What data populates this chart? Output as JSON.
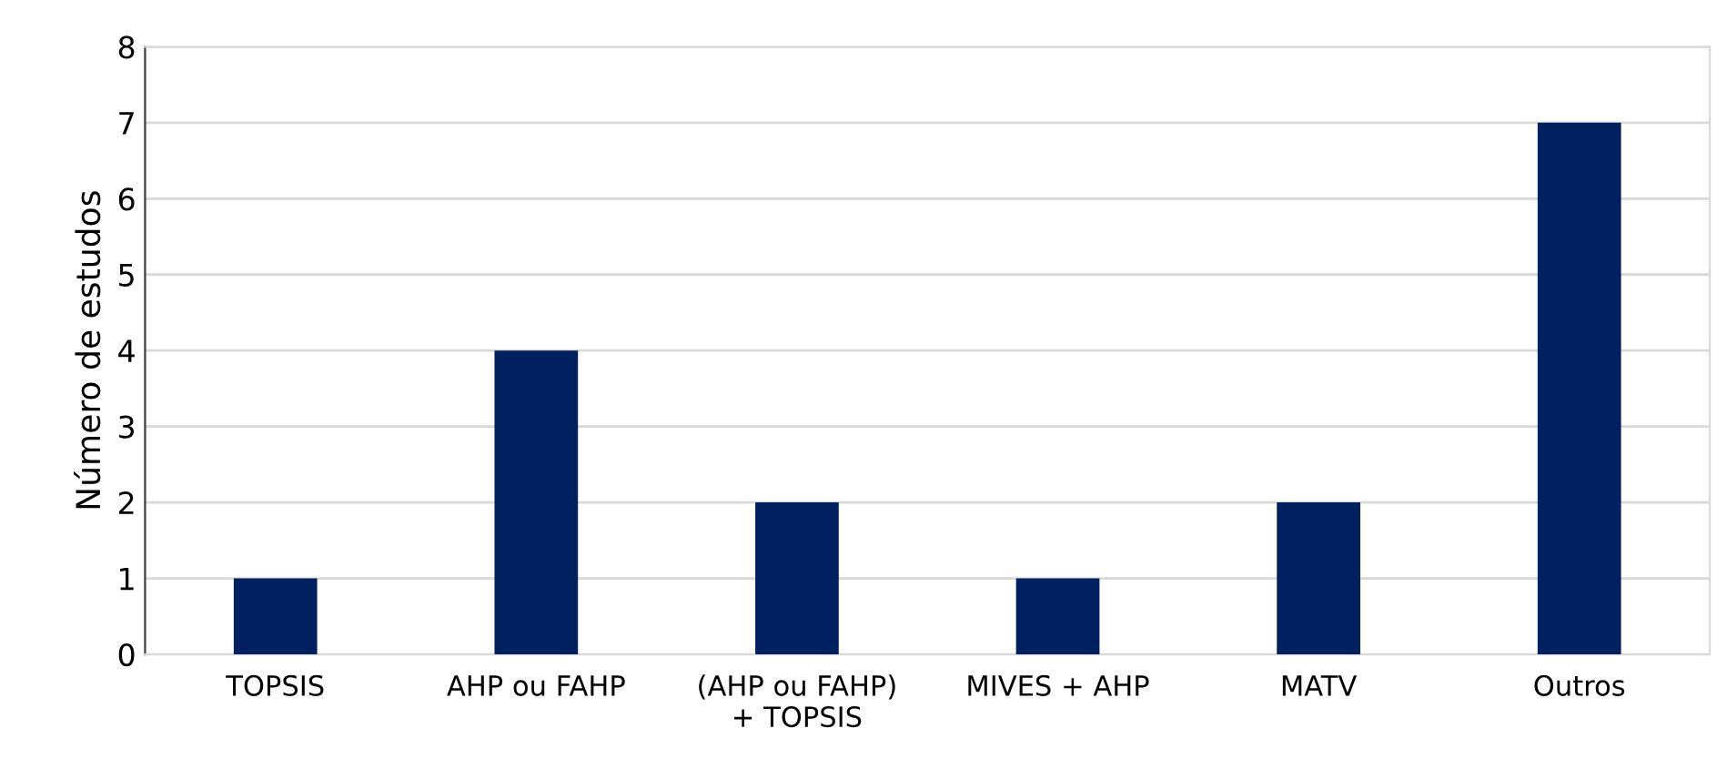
{
  "chart_data": {
    "type": "bar",
    "ylabel": "Número de estudos",
    "categories": [
      "TOPSIS",
      "AHP ou FAHP",
      "(AHP ou FAHP) + TOPSIS",
      "MIVES + AHP",
      "MATV",
      "Outros"
    ],
    "values": [
      1,
      4,
      2,
      1,
      2,
      7
    ],
    "color": "#002060",
    "ylim": [
      0,
      8
    ],
    "yticks": [
      0,
      1,
      2,
      3,
      4,
      5,
      6,
      7,
      8
    ],
    "grid": "y"
  }
}
